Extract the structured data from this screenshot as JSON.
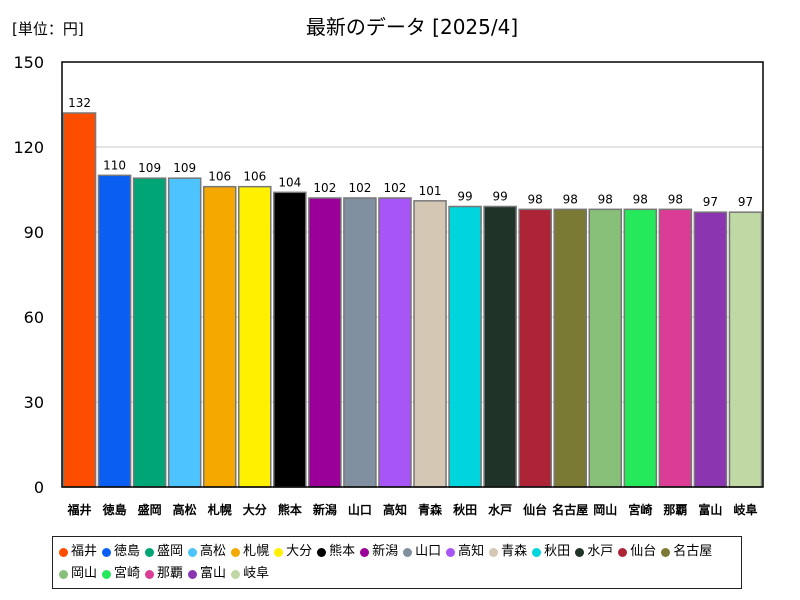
{
  "chart_data": {
    "type": "bar",
    "title": "最新のデータ [2025/4]",
    "unit_label": "[単位：円]",
    "ylim": [
      0,
      150
    ],
    "yticks": [
      0,
      30,
      60,
      90,
      120,
      150
    ],
    "grid": true,
    "legend_position": "bottom",
    "categories": [
      "福井",
      "徳島",
      "盛岡",
      "高松",
      "札幌",
      "大分",
      "熊本",
      "新潟",
      "山口",
      "高知",
      "青森",
      "秋田",
      "水戸",
      "仙台",
      "名古屋",
      "岡山",
      "宮崎",
      "那覇",
      "富山",
      "岐阜"
    ],
    "values": [
      132,
      110,
      109,
      109,
      106,
      106,
      104,
      102,
      102,
      102,
      101,
      99,
      99,
      98,
      98,
      98,
      98,
      98,
      97,
      97
    ],
    "colors": [
      "#ff4d00",
      "#0a5ff2",
      "#00a575",
      "#4dc3ff",
      "#f5a800",
      "#fff000",
      "#000000",
      "#9a0099",
      "#8090a0",
      "#a855f7",
      "#d4c8b4",
      "#00d4dc",
      "#1f3328",
      "#ad2436",
      "#7b7a35",
      "#88c07a",
      "#25e85a",
      "#db3d96",
      "#8c35b0",
      "#c0d8a4"
    ]
  }
}
